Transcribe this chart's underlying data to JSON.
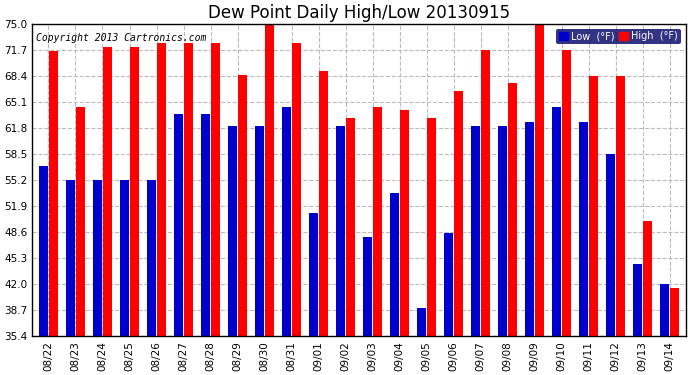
{
  "title": "Dew Point Daily High/Low 20130915",
  "copyright": "Copyright 2013 Cartronics.com",
  "background_color": "#ffffff",
  "plot_bg_color": "#ffffff",
  "bar_color_low": "#0000cc",
  "bar_color_high": "#ff0000",
  "legend_low_label": "Low  (°F)",
  "legend_high_label": "High  (°F)",
  "dates": [
    "08/22",
    "08/23",
    "08/24",
    "08/25",
    "08/26",
    "08/27",
    "08/28",
    "08/29",
    "08/30",
    "08/31",
    "09/01",
    "09/02",
    "09/03",
    "09/04",
    "09/05",
    "09/06",
    "09/07",
    "09/08",
    "09/09",
    "09/10",
    "09/11",
    "09/12",
    "09/13",
    "09/14"
  ],
  "highs": [
    71.5,
    64.5,
    72.0,
    72.0,
    72.5,
    72.5,
    72.5,
    68.5,
    75.5,
    72.5,
    69.0,
    63.0,
    64.5,
    64.0,
    63.0,
    66.5,
    71.7,
    67.5,
    75.0,
    71.7,
    68.4,
    68.4,
    50.0,
    41.5
  ],
  "lows": [
    57.0,
    55.2,
    55.2,
    55.2,
    55.2,
    63.5,
    63.5,
    62.0,
    62.0,
    64.5,
    51.0,
    62.0,
    48.0,
    53.5,
    39.0,
    48.5,
    62.0,
    62.0,
    62.5,
    64.5,
    62.5,
    58.5,
    44.5,
    42.0
  ],
  "ymin": 35.4,
  "ymax": 75.0,
  "yticks": [
    35.4,
    38.7,
    42.0,
    45.3,
    48.6,
    51.9,
    55.2,
    58.5,
    61.8,
    65.1,
    68.4,
    71.7,
    75.0
  ],
  "grid_color": "#bbbbbb",
  "title_fontsize": 12,
  "tick_fontsize": 7.5,
  "copyright_fontsize": 7
}
